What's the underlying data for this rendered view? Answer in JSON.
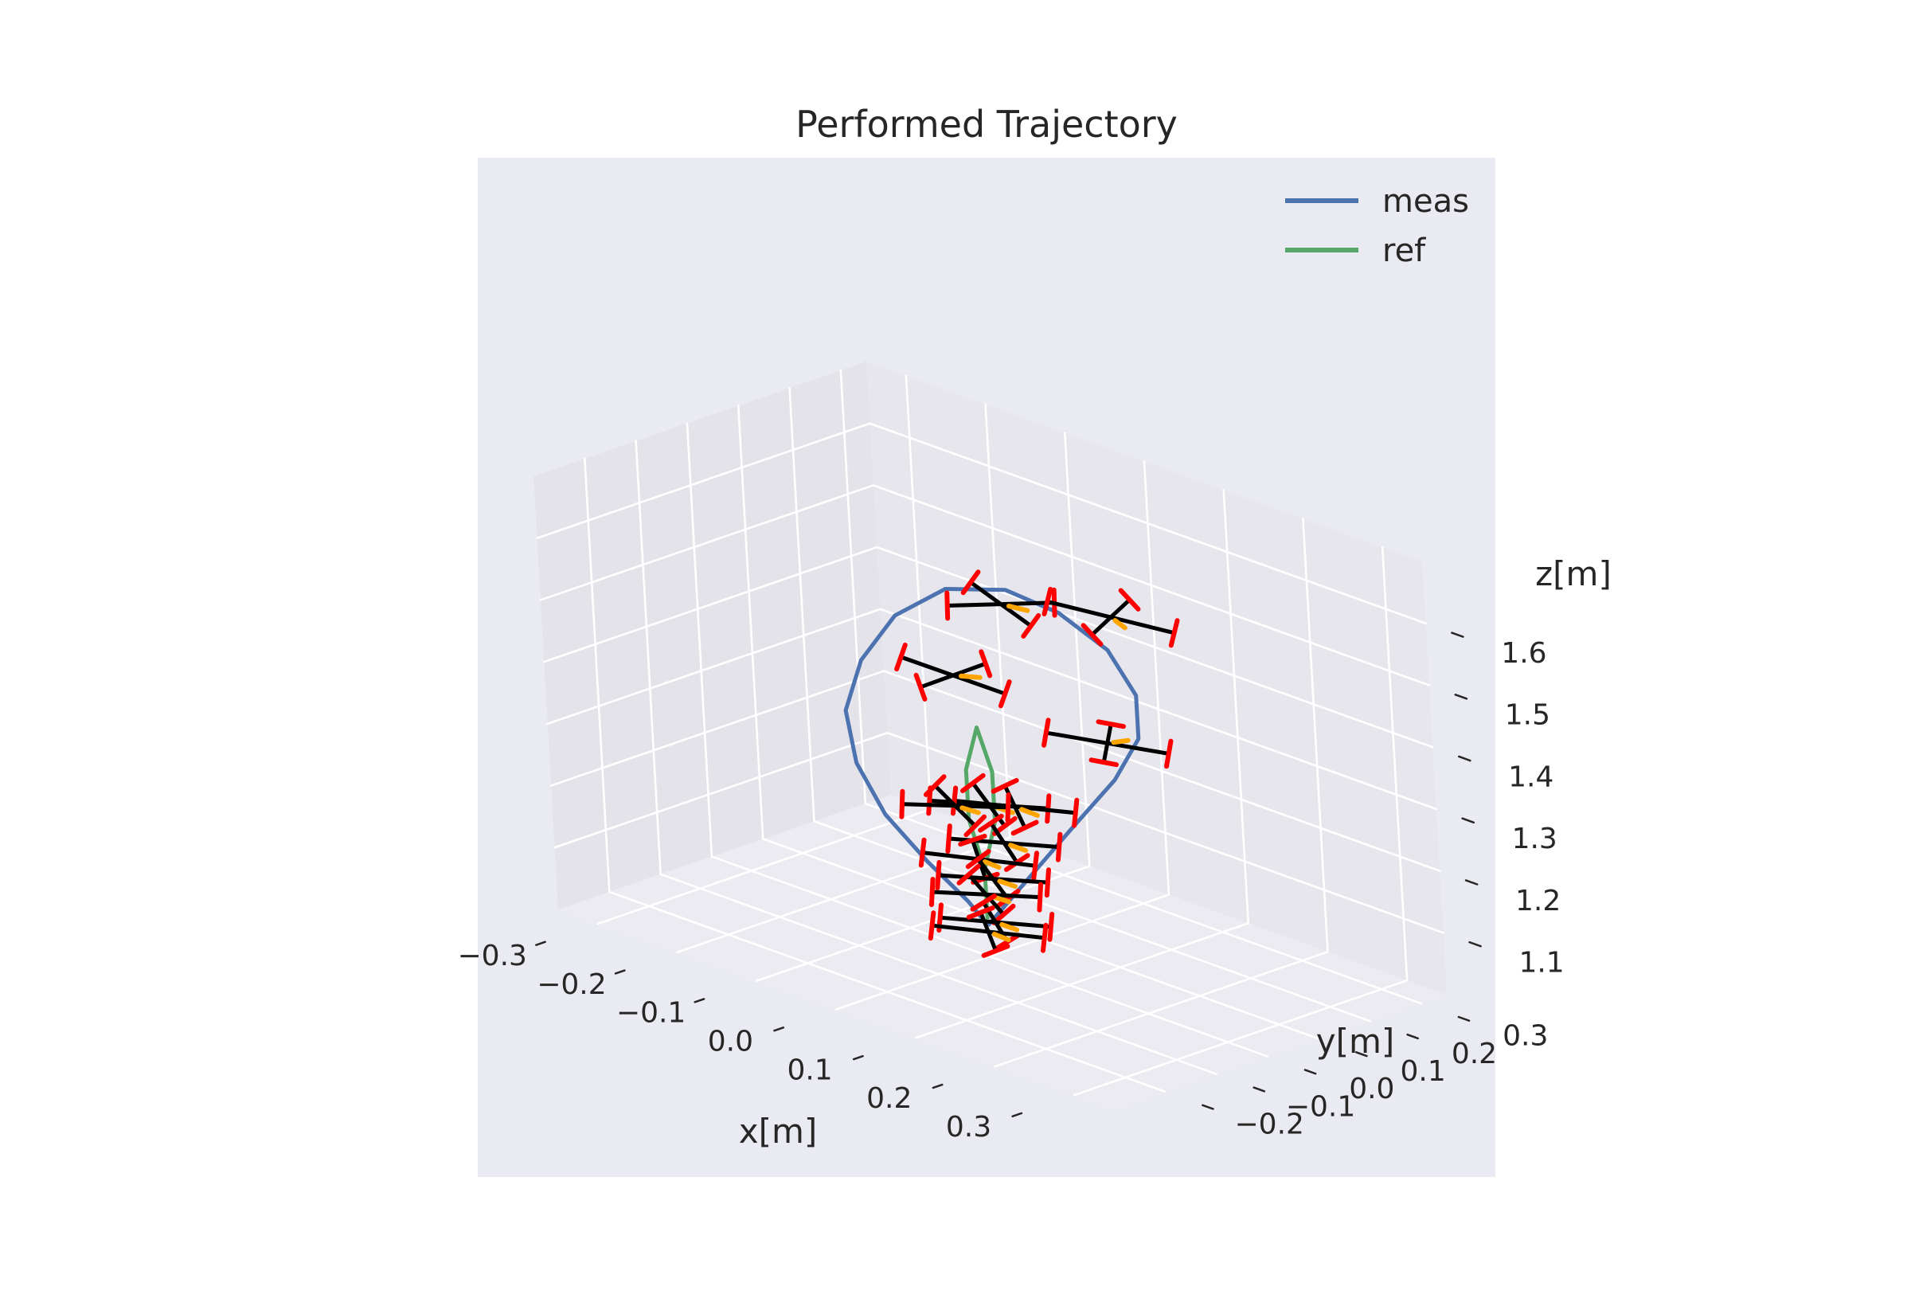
{
  "chart_data": {
    "type": "line",
    "projection": "3d",
    "title": "Performed Trajectory",
    "xlabel": "x[m]",
    "ylabel": "y[m]",
    "zlabel": "z[m]",
    "xlim": [
      -0.35,
      0.35
    ],
    "ylim": [
      -0.3,
      0.35
    ],
    "zlim": [
      1.0,
      1.7
    ],
    "xticks": [
      "−0.3",
      "−0.2",
      "−0.1",
      "0.0",
      "0.1",
      "0.2",
      "0.3"
    ],
    "yticks": [
      "−0.2",
      "−0.1",
      "0.0",
      "0.1",
      "0.2",
      "0.3"
    ],
    "zticks": [
      "1.1",
      "1.2",
      "1.3",
      "1.4",
      "1.5",
      "1.6"
    ],
    "grid": true,
    "legend_position": "top-right",
    "series": [
      {
        "name": "meas",
        "color": "#4c72b0",
        "points": [
          [
            0.0,
            0.0,
            1.05
          ],
          [
            0.03,
            0.04,
            1.13
          ],
          [
            0.06,
            0.08,
            1.21
          ],
          [
            0.1,
            0.11,
            1.3
          ],
          [
            0.12,
            0.13,
            1.37
          ],
          [
            0.12,
            0.13,
            1.44
          ],
          [
            0.1,
            0.11,
            1.51
          ],
          [
            0.06,
            0.08,
            1.56
          ],
          [
            0.02,
            0.04,
            1.59
          ],
          [
            -0.03,
            0.0,
            1.58
          ],
          [
            -0.07,
            -0.04,
            1.53
          ],
          [
            -0.09,
            -0.08,
            1.46
          ],
          [
            -0.1,
            -0.1,
            1.38
          ],
          [
            -0.09,
            -0.1,
            1.3
          ],
          [
            -0.07,
            -0.08,
            1.22
          ],
          [
            -0.04,
            -0.05,
            1.15
          ],
          [
            -0.01,
            -0.02,
            1.09
          ],
          [
            0.0,
            0.0,
            1.05
          ]
        ]
      },
      {
        "name": "ref",
        "color": "#55a868",
        "points": [
          [
            0.0,
            0.0,
            1.06
          ],
          [
            0.0,
            0.0,
            1.14
          ],
          [
            0.01,
            0.01,
            1.22
          ],
          [
            0.01,
            0.01,
            1.3
          ],
          [
            0.0,
            0.0,
            1.37
          ],
          [
            -0.01,
            -0.01,
            1.3
          ],
          [
            -0.01,
            -0.01,
            1.22
          ],
          [
            0.0,
            0.0,
            1.14
          ]
        ]
      }
    ],
    "drone_poses": [
      {
        "x": 0.02,
        "y": 0.03,
        "z": 1.57,
        "yaw": 0.3,
        "size": 0.13
      },
      {
        "x": 0.1,
        "y": 0.12,
        "z": 1.56,
        "yaw": -0.5,
        "size": 0.14
      },
      {
        "x": -0.04,
        "y": 0.02,
        "z": 1.43,
        "yaw": 0.8,
        "size": 0.13
      },
      {
        "x": 0.12,
        "y": 0.07,
        "z": 1.38,
        "yaw": 1.3,
        "size": 0.13
      },
      {
        "x": 0.01,
        "y": 0.0,
        "z": 1.25,
        "yaw": 0.05,
        "size": 0.13
      },
      {
        "x": 0.03,
        "y": 0.02,
        "z": 1.25,
        "yaw": -0.05,
        "size": 0.13
      },
      {
        "x": -0.02,
        "y": -0.02,
        "z": 1.24,
        "yaw": 0.15,
        "size": 0.12
      },
      {
        "x": 0.02,
        "y": 0.01,
        "z": 1.19,
        "yaw": 0.02,
        "size": 0.12
      },
      {
        "x": 0.0,
        "y": -0.01,
        "z": 1.16,
        "yaw": -0.1,
        "size": 0.12
      },
      {
        "x": 0.01,
        "y": 0.0,
        "z": 1.13,
        "yaw": 0.05,
        "size": 0.12
      },
      {
        "x": 0.0,
        "y": 0.0,
        "z": 1.1,
        "yaw": 0.1,
        "size": 0.12
      },
      {
        "x": 0.01,
        "y": 0.0,
        "z": 1.06,
        "yaw": 0.0,
        "size": 0.12
      },
      {
        "x": 0.0,
        "y": 0.0,
        "z": 1.04,
        "yaw": -0.08,
        "size": 0.12
      }
    ],
    "colors": {
      "panes": "#e7e7ed",
      "axes_background": "#eaeaf2",
      "grid": "#ffffff",
      "arms": "#000000",
      "rotors": "#ff0000",
      "heading": "#ffa500"
    }
  }
}
